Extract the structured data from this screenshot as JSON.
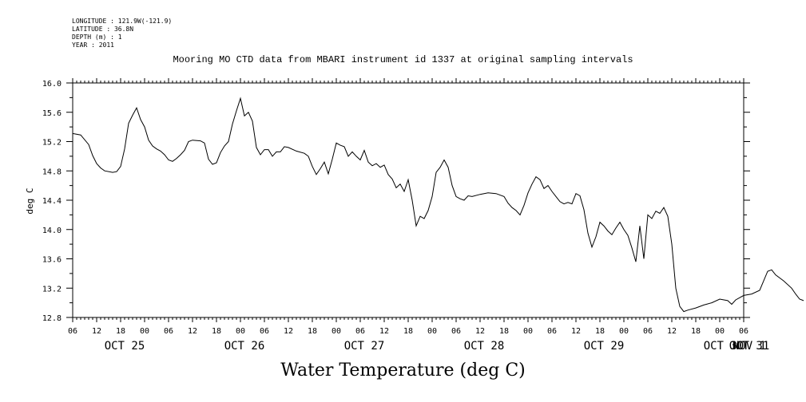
{
  "metadata": {
    "longitude": "LONGITUDE : 121.9W(-121.9)",
    "latitude": "LATITUDE : 36.8N",
    "depth": "DEPTH (m) : 1",
    "year": "YEAR : 2011"
  },
  "chart_data": {
    "type": "line",
    "title": "Mooring MO CTD data from MBARI instrument id 1337 at original sampling intervals",
    "bottom_title": "Water Temperature (deg C)",
    "ylabel": "deg C",
    "xlabel": "",
    "ylim": [
      12.8,
      16.0
    ],
    "y_ticks": [
      "12.8",
      "13.2",
      "13.6",
      "14.0",
      "14.4",
      "14.8",
      "15.2",
      "15.6",
      "16.0"
    ],
    "x_range_hours_labels": [
      "06",
      "12",
      "18",
      "00",
      "06",
      "12",
      "18",
      "00",
      "06",
      "12",
      "18",
      "00",
      "06",
      "12",
      "18",
      "00",
      "06",
      "12",
      "18",
      "00",
      "06",
      "12",
      "18",
      "00",
      "06",
      "12",
      "18",
      "00",
      "06"
    ],
    "day_labels": [
      "OCT 25",
      "OCT 26",
      "OCT 27",
      "OCT 28",
      "OCT 29",
      "OCT 30",
      "OCT 31",
      "NOV 1"
    ],
    "grid": false,
    "series": [
      {
        "values": [
          [
            "2011-10-25 06:00",
            15.31
          ],
          [
            "2011-10-25 08:00",
            15.29
          ],
          [
            "2011-10-25 10:00",
            15.16
          ],
          [
            "2011-10-25 11:00",
            15.01
          ],
          [
            "2011-10-25 12:00",
            14.9
          ],
          [
            "2011-10-25 13:00",
            14.84
          ],
          [
            "2011-10-25 14:00",
            14.8
          ],
          [
            "2011-10-25 16:00",
            14.78
          ],
          [
            "2011-10-25 17:00",
            14.79
          ],
          [
            "2011-10-25 18:00",
            14.86
          ],
          [
            "2011-10-25 19:00",
            15.1
          ],
          [
            "2011-10-25 20:00",
            15.45
          ],
          [
            "2011-10-25 21:00",
            15.56
          ],
          [
            "2011-10-25 22:00",
            15.66
          ],
          [
            "2011-10-25 23:00",
            15.5
          ],
          [
            "2011-10-26 00:00",
            15.4
          ],
          [
            "2011-10-26 01:00",
            15.22
          ],
          [
            "2011-10-26 02:00",
            15.14
          ],
          [
            "2011-10-26 03:00",
            15.1
          ],
          [
            "2011-10-26 04:00",
            15.07
          ],
          [
            "2011-10-26 05:00",
            15.02
          ],
          [
            "2011-10-26 06:00",
            14.95
          ],
          [
            "2011-10-26 07:00",
            14.93
          ],
          [
            "2011-10-26 08:00",
            14.97
          ],
          [
            "2011-10-26 09:00",
            15.02
          ],
          [
            "2011-10-26 10:00",
            15.08
          ],
          [
            "2011-10-26 11:00",
            15.2
          ],
          [
            "2011-10-26 12:00",
            15.22
          ],
          [
            "2011-10-26 14:00",
            15.21
          ],
          [
            "2011-10-26 15:00",
            15.18
          ],
          [
            "2011-10-26 16:00",
            14.96
          ],
          [
            "2011-10-26 17:00",
            14.89
          ],
          [
            "2011-10-26 18:00",
            14.91
          ],
          [
            "2011-10-26 19:00",
            15.05
          ],
          [
            "2011-10-26 20:00",
            15.14
          ],
          [
            "2011-10-26 21:00",
            15.2
          ],
          [
            "2011-10-26 22:00",
            15.44
          ],
          [
            "2011-10-26 23:00",
            15.62
          ],
          [
            "2011-10-27 00:00",
            15.79
          ],
          [
            "2011-10-27 01:00",
            15.55
          ],
          [
            "2011-10-27 02:00",
            15.6
          ],
          [
            "2011-10-27 03:00",
            15.48
          ],
          [
            "2011-10-27 04:00",
            15.12
          ],
          [
            "2011-10-27 05:00",
            15.02
          ],
          [
            "2011-10-27 06:00",
            15.09
          ],
          [
            "2011-10-27 07:00",
            15.09
          ],
          [
            "2011-10-27 08:00",
            15.0
          ],
          [
            "2011-10-27 09:00",
            15.06
          ],
          [
            "2011-10-27 10:00",
            15.06
          ],
          [
            "2011-10-27 11:00",
            15.13
          ],
          [
            "2011-10-27 12:00",
            15.12
          ],
          [
            "2011-10-27 14:00",
            15.07
          ],
          [
            "2011-10-27 16:00",
            15.04
          ],
          [
            "2011-10-27 17:00",
            15.0
          ],
          [
            "2011-10-27 18:00",
            14.86
          ],
          [
            "2011-10-27 19:00",
            14.75
          ],
          [
            "2011-10-27 20:00",
            14.83
          ],
          [
            "2011-10-27 21:00",
            14.92
          ],
          [
            "2011-10-27 22:00",
            14.76
          ],
          [
            "2011-10-27 23:00",
            14.96
          ],
          [
            "2011-10-28 00:00",
            15.18
          ],
          [
            "2011-10-28 01:00",
            15.15
          ],
          [
            "2011-10-28 02:00",
            15.13
          ],
          [
            "2011-10-28 03:00",
            15.0
          ],
          [
            "2011-10-28 04:00",
            15.06
          ],
          [
            "2011-10-28 05:00",
            15.0
          ],
          [
            "2011-10-28 06:00",
            14.95
          ],
          [
            "2011-10-28 07:00",
            15.08
          ],
          [
            "2011-10-28 08:00",
            14.92
          ],
          [
            "2011-10-28 09:00",
            14.87
          ],
          [
            "2011-10-28 10:00",
            14.9
          ],
          [
            "2011-10-28 11:00",
            14.85
          ],
          [
            "2011-10-28 12:00",
            14.88
          ],
          [
            "2011-10-28 13:00",
            14.75
          ],
          [
            "2011-10-28 14:00",
            14.69
          ],
          [
            "2011-10-28 15:00",
            14.57
          ],
          [
            "2011-10-28 16:00",
            14.62
          ],
          [
            "2011-10-28 17:00",
            14.52
          ],
          [
            "2011-10-28 18:00",
            14.68
          ],
          [
            "2011-10-28 19:00",
            14.4
          ],
          [
            "2011-10-28 20:00",
            14.05
          ],
          [
            "2011-10-28 21:00",
            14.18
          ],
          [
            "2011-10-28 22:00",
            14.15
          ],
          [
            "2011-10-28 23:00",
            14.26
          ],
          [
            "2011-10-29 00:00",
            14.45
          ],
          [
            "2011-10-29 01:00",
            14.78
          ],
          [
            "2011-10-29 02:00",
            14.85
          ],
          [
            "2011-10-29 03:00",
            14.95
          ],
          [
            "2011-10-29 04:00",
            14.85
          ],
          [
            "2011-10-29 05:00",
            14.6
          ],
          [
            "2011-10-29 06:00",
            14.45
          ],
          [
            "2011-10-29 07:00",
            14.42
          ],
          [
            "2011-10-29 08:00",
            14.4
          ],
          [
            "2011-10-29 09:00",
            14.46
          ],
          [
            "2011-10-29 10:00",
            14.45
          ],
          [
            "2011-10-29 12:00",
            14.48
          ],
          [
            "2011-10-29 14:00",
            14.5
          ],
          [
            "2011-10-29 16:00",
            14.49
          ],
          [
            "2011-10-29 18:00",
            14.45
          ],
          [
            "2011-10-29 19:00",
            14.36
          ],
          [
            "2011-10-29 20:00",
            14.3
          ],
          [
            "2011-10-29 21:00",
            14.26
          ],
          [
            "2011-10-29 22:00",
            14.2
          ],
          [
            "2011-10-29 23:00",
            14.33
          ],
          [
            "2011-10-30 00:00",
            14.5
          ],
          [
            "2011-10-30 01:00",
            14.62
          ],
          [
            "2011-10-30 02:00",
            14.72
          ],
          [
            "2011-10-30 03:00",
            14.68
          ],
          [
            "2011-10-30 04:00",
            14.56
          ],
          [
            "2011-10-30 05:00",
            14.6
          ],
          [
            "2011-10-30 06:00",
            14.52
          ],
          [
            "2011-10-30 07:00",
            14.45
          ],
          [
            "2011-10-30 08:00",
            14.38
          ],
          [
            "2011-10-30 09:00",
            14.35
          ],
          [
            "2011-10-30 10:00",
            14.37
          ],
          [
            "2011-10-30 11:00",
            14.35
          ],
          [
            "2011-10-30 12:00",
            14.49
          ],
          [
            "2011-10-30 13:00",
            14.46
          ],
          [
            "2011-10-30 14:00",
            14.27
          ],
          [
            "2011-10-30 15:00",
            13.95
          ],
          [
            "2011-10-30 16:00",
            13.76
          ],
          [
            "2011-10-30 17:00",
            13.9
          ],
          [
            "2011-10-30 18:00",
            14.1
          ],
          [
            "2011-10-30 19:00",
            14.05
          ],
          [
            "2011-10-30 20:00",
            13.98
          ],
          [
            "2011-10-30 21:00",
            13.93
          ],
          [
            "2011-10-30 22:00",
            14.02
          ],
          [
            "2011-10-30 23:00",
            14.1
          ],
          [
            "2011-10-31 00:00",
            14.0
          ],
          [
            "2011-10-31 01:00",
            13.92
          ],
          [
            "2011-10-31 02:00",
            13.75
          ],
          [
            "2011-10-31 03:00",
            13.56
          ],
          [
            "2011-10-31 04:00",
            14.05
          ],
          [
            "2011-10-31 05:00",
            13.6
          ],
          [
            "2011-10-31 06:00",
            14.2
          ],
          [
            "2011-10-31 07:00",
            14.15
          ],
          [
            "2011-10-31 08:00",
            14.25
          ],
          [
            "2011-10-31 09:00",
            14.22
          ],
          [
            "2011-10-31 10:00",
            14.3
          ],
          [
            "2011-10-31 11:00",
            14.18
          ],
          [
            "2011-10-31 12:00",
            13.8
          ],
          [
            "2011-10-31 13:00",
            13.2
          ],
          [
            "2011-10-31 14:00",
            12.95
          ],
          [
            "2011-10-31 15:00",
            12.88
          ],
          [
            "2011-10-31 16:00",
            12.9
          ],
          [
            "2011-10-31 18:00",
            12.93
          ],
          [
            "2011-10-31 20:00",
            12.97
          ],
          [
            "2011-10-31 22:00",
            13.0
          ],
          [
            "2011-11-01 00:00",
            13.05
          ],
          [
            "2011-11-01 02:00",
            13.03
          ],
          [
            "2011-11-01 03:00",
            12.98
          ],
          [
            "2011-11-01 04:00",
            13.04
          ],
          [
            "2011-11-01 06:00",
            13.1
          ],
          [
            "2011-11-01 08:00",
            13.12
          ],
          [
            "2011-11-01 10:00",
            13.17
          ],
          [
            "2011-11-01 11:00",
            13.3
          ],
          [
            "2011-11-01 12:00",
            13.43
          ],
          [
            "2011-11-01 13:00",
            13.45
          ],
          [
            "2011-11-01 14:00",
            13.38
          ],
          [
            "2011-11-01 16:00",
            13.3
          ],
          [
            "2011-11-01 18:00",
            13.2
          ],
          [
            "2011-11-01 19:00",
            13.12
          ],
          [
            "2011-11-01 20:00",
            13.05
          ],
          [
            "2011-11-01 21:00",
            13.03
          ]
        ]
      }
    ]
  }
}
